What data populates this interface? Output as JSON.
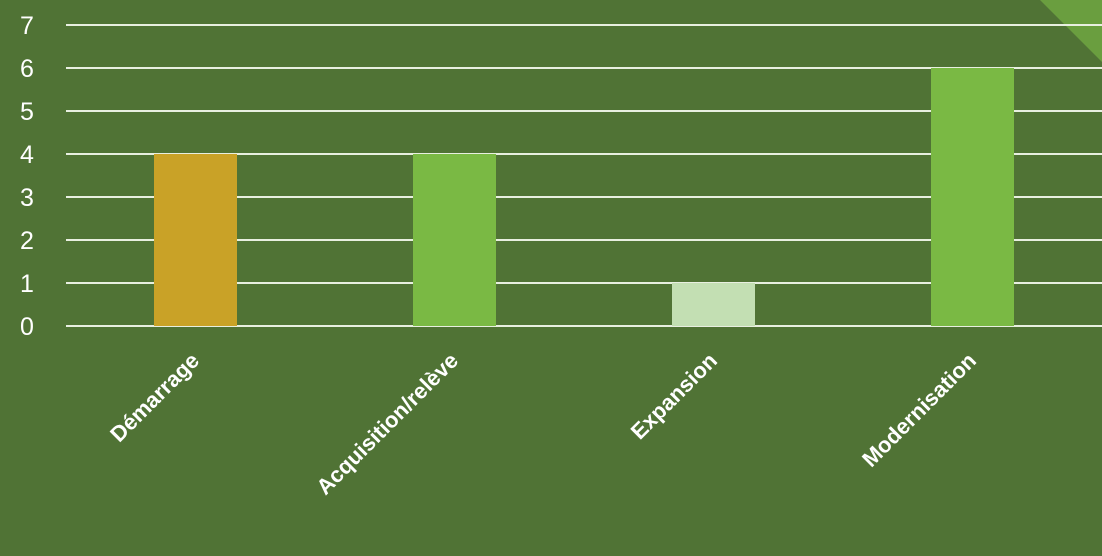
{
  "chart_data": {
    "type": "bar",
    "categories": [
      "Démarrage",
      "Acquisition/relève",
      "Expansion",
      "Modernisation"
    ],
    "values": [
      4,
      4,
      1,
      6
    ],
    "bar_colors": [
      "#c9a227",
      "#7ab944",
      "#c3dfb3",
      "#7ab944"
    ],
    "ylim": [
      0,
      7
    ],
    "yticks": [
      0,
      1,
      2,
      3,
      4,
      5,
      6,
      7
    ],
    "grid": true,
    "legend": "none",
    "title": "",
    "xlabel": "",
    "ylabel": ""
  },
  "theme": {
    "background": "#507335",
    "corner_accent": "#6a9e3f",
    "gridline": "#e8efe0",
    "text": "#ffffff"
  }
}
